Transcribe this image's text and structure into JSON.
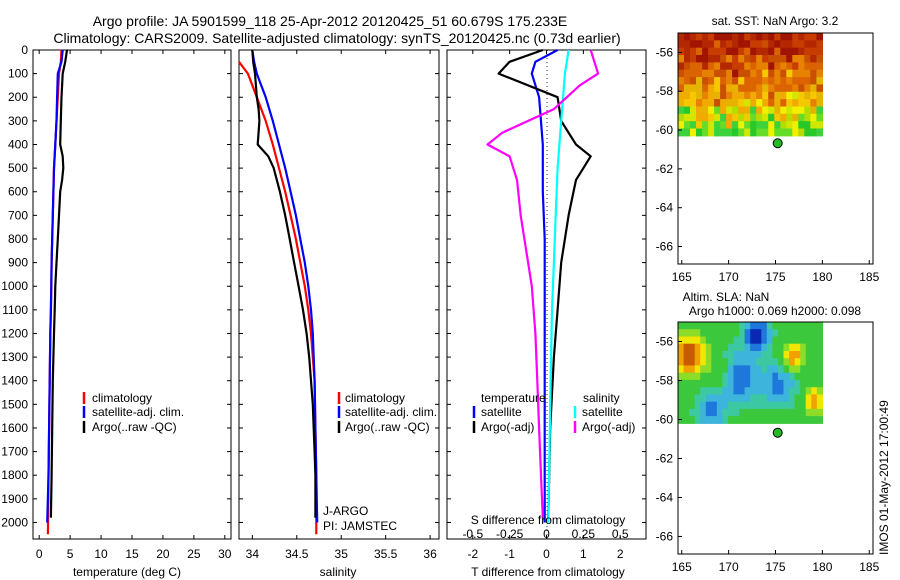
{
  "title": {
    "line1": "Argo profile: JA 5901599_118 25-Apr-2012 20120425_51 60.679S 175.233E",
    "line2": "Climatology: CARS2009. Satellite-adjusted climatology: synTS_20120425.nc (0.73d earlier)"
  },
  "stamp": "IMOS 01-May-2012 17:00:49",
  "colors": {
    "climatology": "#ff0000",
    "satellite": "#0000ff",
    "argo": "#000000",
    "salinity_satellite": "#00ffff",
    "salinity_argo": "#ff00ff",
    "marker": "#22bb22"
  },
  "legend_tc": {
    "climatology": "climatology",
    "satellite": "satellite-adj. clim.",
    "argo": "Argo(..raw -QC)"
  },
  "legend_diff": {
    "temperature": "temperature",
    "salinity": "salinity",
    "satellite": "satellite",
    "argo": "Argo(-adj)"
  },
  "argo_info": {
    "line1": "J-ARGO",
    "line2": "PI: JAMSTEC"
  },
  "maps": {
    "sst_title": "sat. SST: NaN Argo: 3.2",
    "sla_title_1": "Altim. SLA: NaN",
    "sla_title_2": "Argo h1000: 0.069 h2000: 0.098",
    "lon_ticks": [
      "165",
      "170",
      "175",
      "180",
      "185"
    ],
    "lat_ticks": [
      "-56",
      "-58",
      "-60",
      "-62",
      "-64",
      "-66"
    ],
    "float_position": {
      "lon": 175.233,
      "lat": -60.679
    }
  },
  "chart_data": [
    {
      "type": "line",
      "name": "temperature profile",
      "xlabel": "temperature (deg C)",
      "xlim": [
        -1,
        31
      ],
      "xticks": [
        "0",
        "5",
        "10",
        "15",
        "20",
        "25",
        "30"
      ],
      "ylim": [
        2070,
        0
      ],
      "yticks": [
        "0",
        "100",
        "200",
        "300",
        "400",
        "500",
        "600",
        "700",
        "800",
        "900",
        "1000",
        "1100",
        "1200",
        "1300",
        "1400",
        "1500",
        "1600",
        "1700",
        "1800",
        "1900",
        "2000"
      ],
      "series": [
        {
          "name": "climatology",
          "x": [
            3.6,
            3.5,
            3.2,
            3.0,
            2.8,
            2.6,
            2.4,
            2.3,
            2.2,
            2.1,
            2.0,
            1.95,
            1.9,
            1.8,
            1.7,
            1.6,
            1.5,
            1.4
          ],
          "y": [
            0,
            50,
            100,
            200,
            300,
            400,
            500,
            600,
            700,
            800,
            900,
            1000,
            1100,
            1200,
            1400,
            1600,
            1800,
            2050
          ]
        },
        {
          "name": "satellite-adj. clim.",
          "x": [
            3.8,
            3.6,
            3.0,
            2.9,
            2.8,
            2.6,
            2.4,
            2.3,
            2.2,
            2.1,
            2.0,
            1.95,
            1.9,
            1.8,
            1.7,
            1.6,
            1.5,
            1.3
          ],
          "y": [
            0,
            50,
            100,
            200,
            300,
            400,
            500,
            600,
            700,
            800,
            900,
            1000,
            1100,
            1200,
            1400,
            1600,
            1800,
            2000
          ]
        },
        {
          "name": "Argo(..raw -QC)",
          "x": [
            4.5,
            4.2,
            3.8,
            3.6,
            3.5,
            3.4,
            3.8,
            3.9,
            3.7,
            3.4,
            3.2,
            3.0,
            2.8,
            2.6,
            2.5,
            2.4,
            2.2,
            2.1,
            2.0,
            1.9
          ],
          "y": [
            0,
            50,
            100,
            200,
            300,
            400,
            450,
            500,
            550,
            600,
            700,
            800,
            900,
            1000,
            1100,
            1200,
            1400,
            1600,
            1800,
            1980
          ]
        }
      ]
    },
    {
      "type": "line",
      "name": "salinity profile",
      "xlabel": "salinity",
      "xlim": [
        33.85,
        36.1
      ],
      "xticks": [
        "34",
        "34.5",
        "35",
        "35.5",
        "36"
      ],
      "ylim": [
        2070,
        0
      ],
      "series": [
        {
          "name": "climatology",
          "x": [
            33.85,
            33.95,
            34.05,
            34.15,
            34.23,
            34.3,
            34.37,
            34.43,
            34.49,
            34.54,
            34.59,
            34.63,
            34.66,
            34.68,
            34.7,
            34.71,
            34.72,
            34.72
          ],
          "y": [
            50,
            100,
            200,
            300,
            400,
            500,
            600,
            700,
            800,
            900,
            1000,
            1100,
            1200,
            1300,
            1400,
            1600,
            1800,
            2050
          ]
        },
        {
          "name": "satellite-adj. clim.",
          "x": [
            34.0,
            34.02,
            34.05,
            34.15,
            34.23,
            34.3,
            34.37,
            34.43,
            34.49,
            34.54,
            34.59,
            34.63,
            34.66,
            34.68,
            34.7,
            34.71,
            34.72,
            34.73
          ],
          "y": [
            0,
            50,
            100,
            200,
            300,
            400,
            500,
            600,
            700,
            800,
            900,
            1000,
            1100,
            1200,
            1400,
            1600,
            1800,
            2000
          ]
        },
        {
          "name": "Argo(..raw -QC)",
          "x": [
            34.0,
            34.01,
            34.03,
            34.05,
            34.07,
            34.08,
            34.06,
            34.18,
            34.24,
            34.31,
            34.37,
            34.42,
            34.47,
            34.52,
            34.57,
            34.61,
            34.64,
            34.66,
            34.68,
            34.69,
            34.7,
            34.71,
            34.71,
            34.71
          ],
          "y": [
            0,
            50,
            100,
            200,
            250,
            300,
            400,
            450,
            500,
            600,
            700,
            800,
            900,
            1000,
            1100,
            1200,
            1300,
            1400,
            1500,
            1600,
            1700,
            1800,
            1900,
            1980
          ]
        }
      ]
    },
    {
      "type": "line",
      "name": "difference from climatology",
      "xlabel": "T difference from climatology",
      "xlabel_top": "S difference from climatology",
      "xlim": [
        -2.7,
        2.7
      ],
      "xticks_T": [
        "-2",
        "-1",
        "0",
        "1",
        "2"
      ],
      "xticks_S": [
        "-0.5",
        "-0.25",
        "0",
        "0.25",
        "0.5"
      ],
      "ylim": [
        2070,
        0
      ],
      "series": [
        {
          "name": "temperature satellite",
          "x": [
            0.3,
            -0.3,
            -0.4,
            -0.2,
            -0.1,
            -0.1,
            -0.05,
            -0.05,
            -0.05,
            -0.05
          ],
          "y": [
            0,
            50,
            100,
            200,
            400,
            600,
            800,
            1200,
            1600,
            2000
          ]
        },
        {
          "name": "temperature Argo(-adj)",
          "x": [
            -0.1,
            -1.0,
            -1.3,
            0.3,
            0.4,
            0.8,
            1.2,
            1.0,
            0.8,
            0.6,
            0.5,
            0.4,
            0.3,
            0.2,
            0.1,
            0.05
          ],
          "y": [
            0,
            50,
            100,
            200,
            300,
            400,
            450,
            500,
            550,
            700,
            800,
            900,
            1100,
            1300,
            1600,
            1980
          ]
        },
        {
          "name": "salinity satellite",
          "x": [
            0.6,
            0.55,
            0.5,
            0.45,
            0.4,
            0.35,
            0.3,
            0.25,
            0.2,
            0.15,
            0.1,
            0.05
          ],
          "y": [
            0,
            50,
            100,
            200,
            300,
            400,
            500,
            700,
            900,
            1100,
            1500,
            2000
          ]
        },
        {
          "name": "salinity Argo(-adj)",
          "x": [
            1.2,
            1.4,
            0.9,
            0.2,
            -1.2,
            -1.6,
            -1.0,
            -0.8,
            -0.7,
            -0.6,
            -0.5,
            -0.4,
            -0.3,
            -0.25,
            -0.2,
            -0.15,
            -0.1
          ],
          "y": [
            0,
            100,
            150,
            250,
            350,
            400,
            450,
            550,
            700,
            800,
            900,
            1000,
            1200,
            1400,
            1600,
            1800,
            1980
          ]
        }
      ]
    }
  ]
}
